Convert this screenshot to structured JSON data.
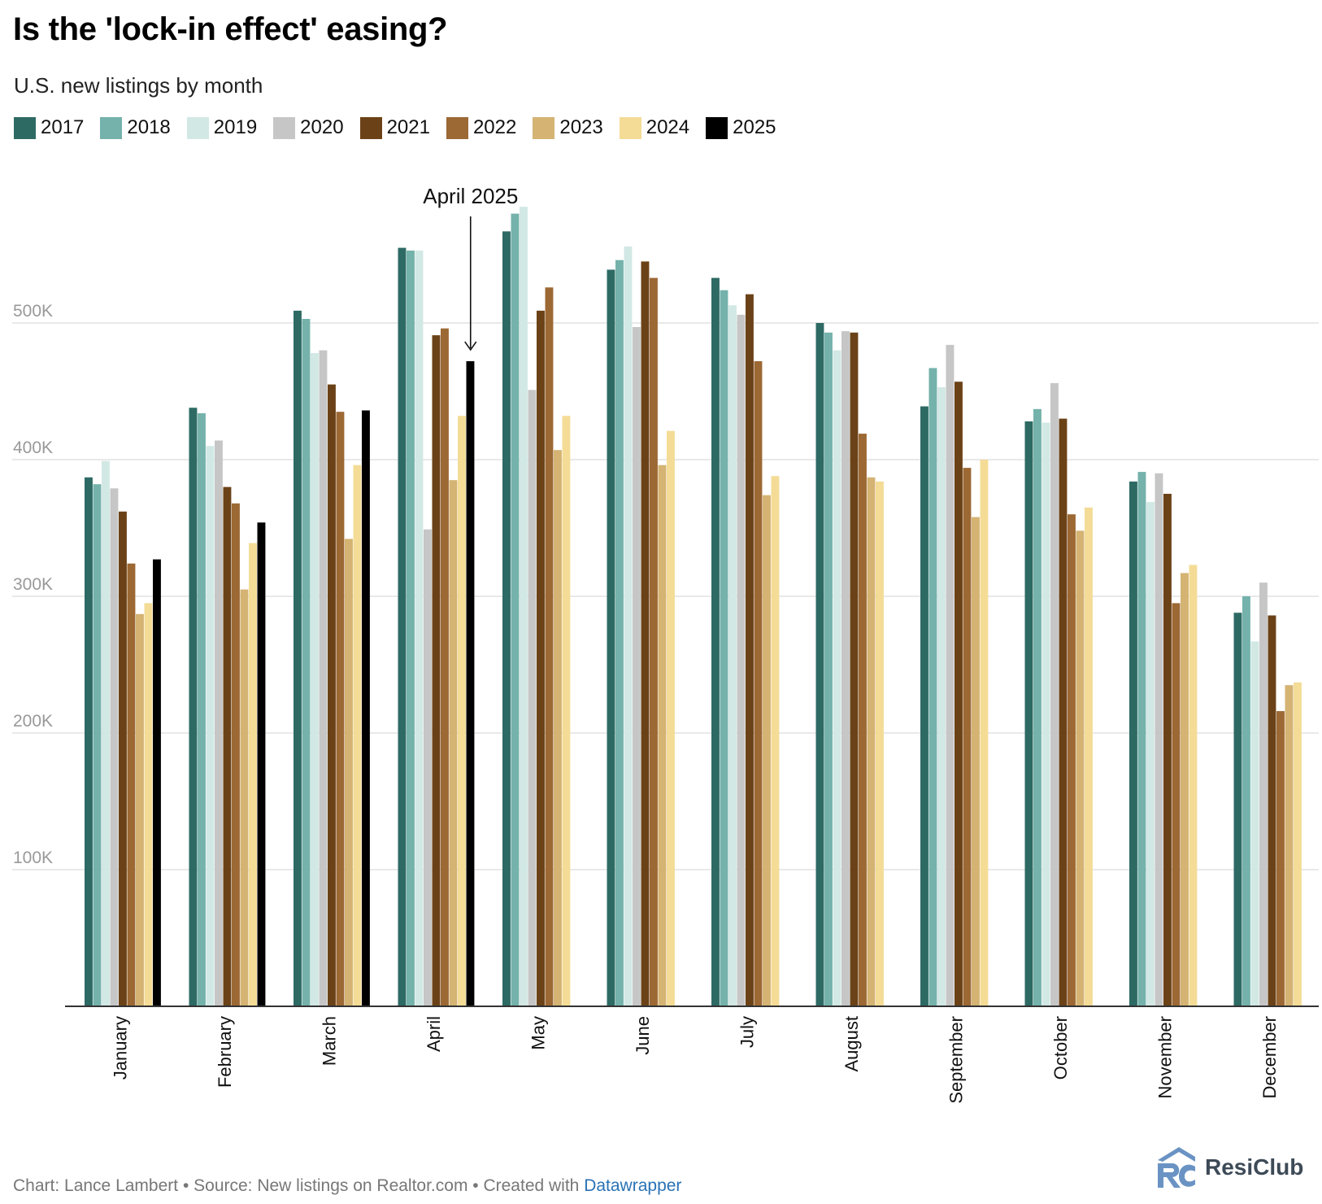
{
  "header": {
    "title": "Is the 'lock-in effect' easing?",
    "subtitle": "U.S. new listings by month"
  },
  "footer": {
    "prefix": "Chart: Lance Lambert • Source: New listings on Realtor.com • Created with ",
    "link": "Datawrapper"
  },
  "brand": {
    "name": "ResiClub",
    "logo_icon": "resiclub-logo-icon",
    "logo_color": "#6a93c4"
  },
  "chart_data": {
    "type": "bar",
    "title": "Is the 'lock-in effect' easing?",
    "subtitle": "U.S. new listings by month",
    "xlabel": "",
    "ylabel": "",
    "ylim": [
      0,
      600000
    ],
    "yticks": [
      100000,
      200000,
      300000,
      400000,
      500000
    ],
    "ytick_labels": [
      "100K",
      "200K",
      "300K",
      "400K",
      "500K"
    ],
    "grid": true,
    "legend_position": "top-left",
    "categories": [
      "January",
      "February",
      "March",
      "April",
      "May",
      "June",
      "July",
      "August",
      "September",
      "October",
      "November",
      "December"
    ],
    "series": [
      {
        "name": "2017",
        "color": "#2e6a64",
        "values": [
          387000,
          438000,
          509000,
          555000,
          567000,
          539000,
          533000,
          500000,
          439000,
          428000,
          384000,
          288000
        ]
      },
      {
        "name": "2018",
        "color": "#74b2ab",
        "values": [
          382000,
          434000,
          503000,
          553000,
          580000,
          546000,
          524000,
          493000,
          467000,
          437000,
          391000,
          300000
        ]
      },
      {
        "name": "2019",
        "color": "#d2e8e4",
        "values": [
          399000,
          410000,
          478000,
          553000,
          585000,
          556000,
          513000,
          480000,
          453000,
          427000,
          369000,
          267000
        ]
      },
      {
        "name": "2020",
        "color": "#c6c6c6",
        "values": [
          379000,
          414000,
          480000,
          349000,
          451000,
          497000,
          506000,
          494000,
          484000,
          456000,
          390000,
          310000
        ]
      },
      {
        "name": "2021",
        "color": "#6b4217",
        "values": [
          362000,
          380000,
          455000,
          491000,
          509000,
          545000,
          521000,
          493000,
          457000,
          430000,
          375000,
          286000
        ]
      },
      {
        "name": "2022",
        "color": "#9c6834",
        "values": [
          324000,
          368000,
          435000,
          496000,
          526000,
          533000,
          472000,
          419000,
          394000,
          360000,
          295000,
          216000
        ]
      },
      {
        "name": "2023",
        "color": "#d4b373",
        "values": [
          287000,
          305000,
          342000,
          385000,
          407000,
          396000,
          374000,
          387000,
          358000,
          348000,
          317000,
          235000
        ]
      },
      {
        "name": "2024",
        "color": "#f4dc97",
        "values": [
          295000,
          339000,
          396000,
          432000,
          432000,
          421000,
          388000,
          384000,
          400000,
          365000,
          323000,
          237000
        ]
      },
      {
        "name": "2025",
        "color": "#000000",
        "values": [
          327000,
          354000,
          436000,
          472000,
          null,
          null,
          null,
          null,
          null,
          null,
          null,
          null
        ]
      }
    ],
    "annotations": [
      {
        "text": "April 2025",
        "category": "April",
        "series": "2025",
        "arrow": "down"
      }
    ]
  }
}
